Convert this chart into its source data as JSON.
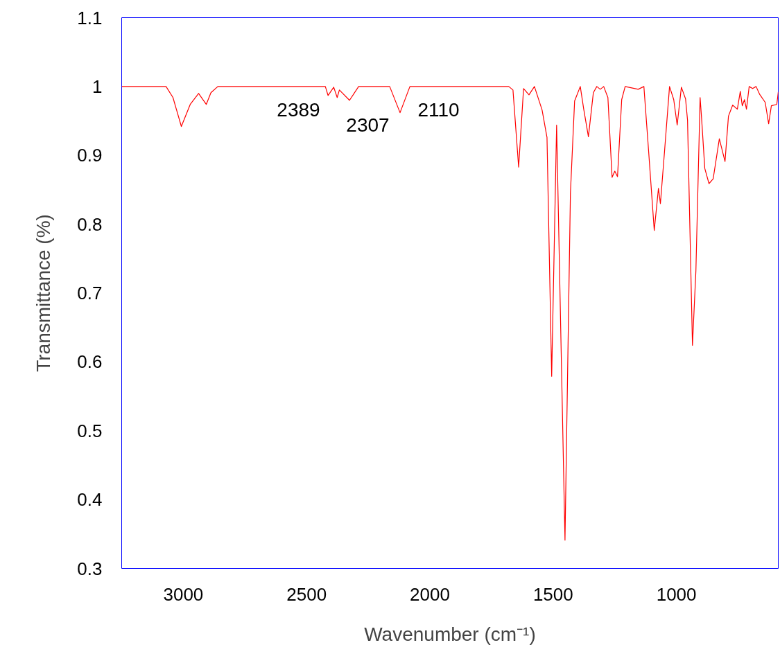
{
  "chart_data": {
    "type": "line",
    "xlabel": "Wavenumber (cm⁻¹)",
    "ylabel": "Transmittance (%)",
    "xlim": [
      3250,
      587
    ],
    "xticks": [
      3000,
      2500,
      2000,
      1500,
      1000
    ],
    "ylim": [
      0.3,
      1.1
    ],
    "yticks": [
      0.3,
      0.4,
      0.5,
      0.6,
      0.7,
      0.8,
      0.9,
      1,
      1.1
    ],
    "grid": false,
    "marker": "none",
    "line_style": "solid",
    "series": [
      {
        "color": "#ff0000",
        "x": [
          3250,
          3070,
          3042,
          3008,
          2972,
          2938,
          2907,
          2888,
          2860,
          2424,
          2413,
          2390,
          2376,
          2367,
          2326,
          2289,
          2163,
          2121,
          2081,
          1680,
          1663,
          1640,
          1620,
          1598,
          1576,
          1545,
          1525,
          1506,
          1486,
          1452,
          1430,
          1413,
          1390,
          1376,
          1357,
          1337,
          1323,
          1309,
          1295,
          1278,
          1261,
          1250,
          1239,
          1222,
          1208,
          1155,
          1132,
          1113,
          1090,
          1073,
          1065,
          1048,
          1028,
          1011,
          997,
          980,
          963,
          955,
          935,
          921,
          904,
          898,
          885,
          868,
          851,
          826,
          803,
          789,
          772,
          753,
          741,
          733,
          724,
          716,
          705,
          691,
          677,
          663,
          640,
          626,
          615,
          593,
          587
        ],
        "values": [
          1.0,
          1.0,
          0.984,
          0.942,
          0.974,
          0.99,
          0.974,
          0.991,
          1.0,
          1.0,
          0.987,
          0.999,
          0.984,
          0.995,
          0.98,
          1.0,
          1.0,
          0.962,
          1.0,
          1.0,
          0.995,
          0.883,
          0.997,
          0.988,
          1.0,
          0.966,
          0.926,
          0.579,
          0.944,
          0.341,
          0.845,
          0.979,
          1.0,
          0.967,
          0.927,
          0.991,
          1.0,
          0.996,
          1.0,
          0.984,
          0.868,
          0.877,
          0.869,
          0.981,
          1.0,
          0.996,
          1.0,
          0.907,
          0.791,
          0.852,
          0.83,
          0.907,
          1.0,
          0.981,
          0.944,
          0.999,
          0.982,
          0.951,
          0.624,
          0.733,
          0.984,
          0.954,
          0.881,
          0.859,
          0.866,
          0.924,
          0.891,
          0.957,
          0.973,
          0.967,
          0.993,
          0.972,
          0.981,
          0.967,
          1.0,
          0.997,
          1.0,
          0.989,
          0.977,
          0.946,
          0.972,
          0.974,
          0.992
        ]
      }
    ],
    "annotations": [
      "2389",
      "2307",
      "2110"
    ]
  }
}
